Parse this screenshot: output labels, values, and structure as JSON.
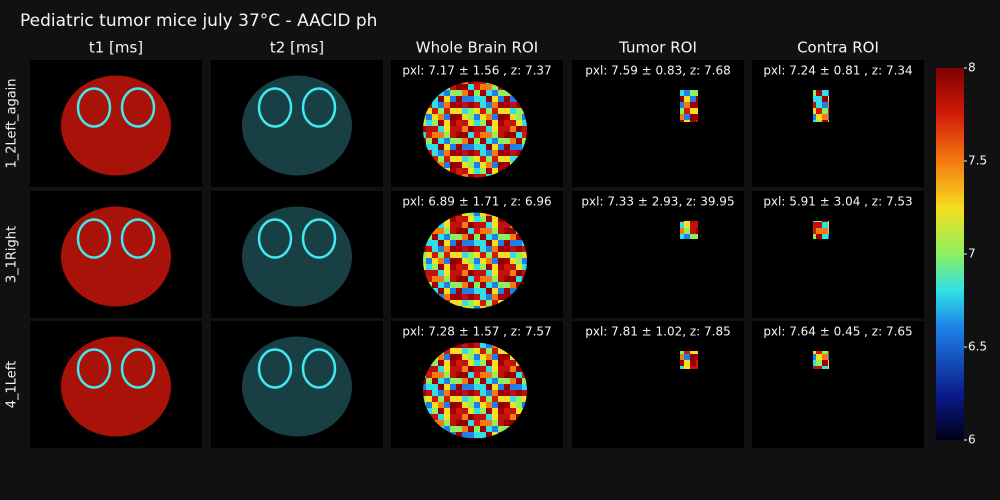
{
  "title": "Pediatric tumor mice july 37°C - AACID ph",
  "columns": [
    "t1 [ms]",
    "t2 [ms]",
    "Whole Brain ROI",
    "Tumor ROI",
    "Contra ROI"
  ],
  "rows": [
    {
      "label": "1_2Left_again",
      "annotations": [
        "pxl: 7.17 ± 1.56 , z: 7.37",
        "pxl: 7.59 ± 0.83, z: 7.68",
        "pxl: 7.24 ± 0.81 , z: 7.34"
      ]
    },
    {
      "label": "3_1Right",
      "annotations": [
        "pxl: 6.89 ± 1.71 , z: 6.96",
        "pxl: 7.33 ± 2.93, z: 39.95",
        "pxl: 5.91 ± 3.04 , z: 7.53"
      ]
    },
    {
      "label": "4_1Left",
      "annotations": [
        "pxl: 7.28 ± 1.57 , z: 7.57",
        "pxl: 7.81 ± 1.02, z: 7.85",
        "pxl: 7.64 ± 0.45 , z: 7.65"
      ]
    }
  ],
  "colorbar": {
    "range": [
      6,
      8
    ],
    "ticks": [
      6,
      6.5,
      7,
      7.5,
      8
    ]
  }
}
